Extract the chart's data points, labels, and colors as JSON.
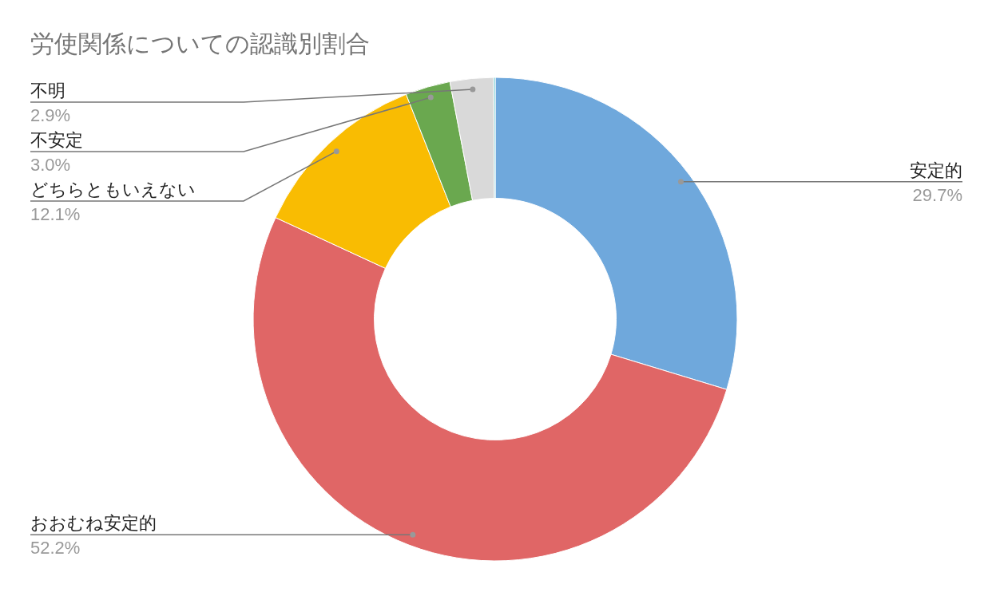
{
  "chart_data": {
    "type": "donut",
    "title": "労使関係についての認識別割合",
    "categories": [
      "安定的",
      "おおむね安定的",
      "どちらともいえない",
      "不安定",
      "不明",
      null
    ],
    "values": [
      29.7,
      52.2,
      12.1,
      3.0,
      2.9,
      0.1
    ],
    "colors": [
      "#6fa8dc",
      "#e06666",
      "#f9bc02",
      "#6aa84f",
      "#d9d9d9",
      "#46bdc6"
    ],
    "value_labels": [
      "29.7%",
      "52.2%",
      "12.1%",
      "3.0%",
      "2.9%",
      null
    ]
  }
}
